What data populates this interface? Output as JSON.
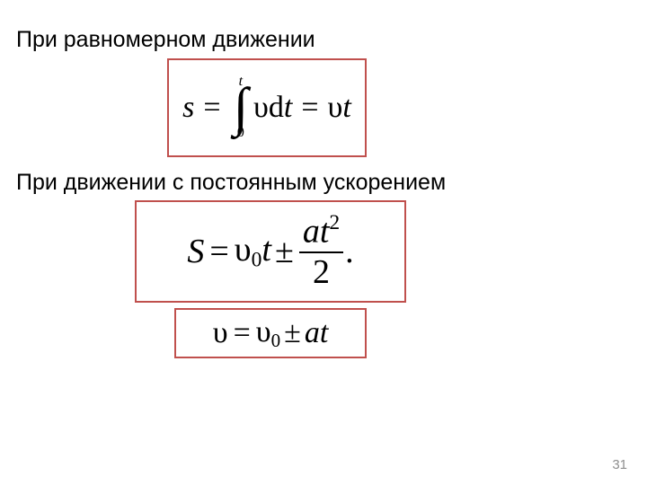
{
  "captions": {
    "uniform": "При равномерном движении",
    "accel": "При движении с постоянным ускорением"
  },
  "formulas": {
    "f1": {
      "lhs_var": "s",
      "int_lower": "0",
      "int_upper": "t",
      "integrand_sym": "υ",
      "differential": "d",
      "dvar": "t",
      "rhs_sym": "υ",
      "rhs_var": "t"
    },
    "f2": {
      "lhs_var": "S",
      "v0_sym": "υ",
      "v0_sub": "0",
      "t": "t",
      "pm": "±",
      "num_a": "a",
      "num_t": "t",
      "num_exp": "2",
      "den": "2",
      "period": "."
    },
    "f3": {
      "lhs_sym": "υ",
      "v0_sym": "υ",
      "v0_sub": "0",
      "pm": "±",
      "a": "a",
      "t": "t"
    }
  },
  "style": {
    "border_color": "#c0504d",
    "text_color": "#000000",
    "page_number_color": "#8f8f8f",
    "background": "#ffffff"
  },
  "page_number": "31"
}
